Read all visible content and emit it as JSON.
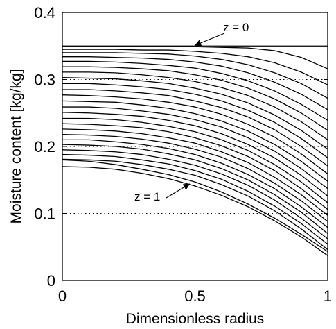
{
  "chart_data": {
    "type": "line",
    "title": "",
    "xlabel": "Dimensionless radius",
    "ylabel": "Moisture content [kg/kg]",
    "xlim": [
      0,
      1
    ],
    "ylim": [
      0,
      0.4
    ],
    "xticks": [
      {
        "value": 0,
        "label": "0"
      },
      {
        "value": 0.5,
        "label": "0.5"
      },
      {
        "value": 1,
        "label": "1"
      }
    ],
    "yticks": [
      {
        "value": 0,
        "label": "0"
      },
      {
        "value": 0.1,
        "label": "0.1"
      },
      {
        "value": 0.2,
        "label": "0.2"
      },
      {
        "value": 0.3,
        "label": "0.3"
      },
      {
        "value": 0.4,
        "label": "0.4"
      }
    ],
    "grid": {
      "style": "dotted",
      "x": [
        0.5
      ],
      "y": [
        0.1,
        0.2,
        0.3
      ]
    },
    "line_color": "#000000",
    "x": [
      0,
      0.1,
      0.2,
      0.3,
      0.4,
      0.5,
      0.6,
      0.7,
      0.8,
      0.9,
      1.0
    ],
    "series": [
      {
        "values": [
          0.35,
          0.35,
          0.35,
          0.35,
          0.35,
          0.35,
          0.35,
          0.35,
          0.35,
          0.35,
          0.35
        ]
      },
      {
        "values": [
          0.349,
          0.349,
          0.349,
          0.349,
          0.349,
          0.349,
          0.348,
          0.347,
          0.343,
          0.333,
          0.316
        ]
      },
      {
        "values": [
          0.345,
          0.345,
          0.345,
          0.344,
          0.344,
          0.342,
          0.339,
          0.334,
          0.325,
          0.311,
          0.292
        ]
      },
      {
        "values": [
          0.34,
          0.34,
          0.34,
          0.339,
          0.338,
          0.335,
          0.33,
          0.322,
          0.31,
          0.294,
          0.272
        ]
      },
      {
        "values": [
          0.334,
          0.334,
          0.333,
          0.332,
          0.33,
          0.326,
          0.32,
          0.31,
          0.296,
          0.278,
          0.255
        ]
      },
      {
        "values": [
          0.327,
          0.327,
          0.326,
          0.324,
          0.321,
          0.317,
          0.309,
          0.298,
          0.283,
          0.263,
          0.239
        ]
      },
      {
        "values": [
          0.319,
          0.319,
          0.318,
          0.316,
          0.313,
          0.307,
          0.299,
          0.287,
          0.271,
          0.25,
          0.224
        ]
      },
      {
        "values": [
          0.311,
          0.311,
          0.31,
          0.307,
          0.303,
          0.297,
          0.288,
          0.276,
          0.259,
          0.237,
          0.21
        ]
      },
      {
        "values": [
          0.303,
          0.302,
          0.301,
          0.298,
          0.294,
          0.287,
          0.278,
          0.265,
          0.247,
          0.224,
          0.196
        ]
      },
      {
        "values": [
          0.294,
          0.294,
          0.292,
          0.289,
          0.285,
          0.278,
          0.268,
          0.254,
          0.236,
          0.212,
          0.183
        ]
      },
      {
        "values": [
          0.285,
          0.285,
          0.283,
          0.28,
          0.276,
          0.268,
          0.258,
          0.244,
          0.225,
          0.2,
          0.171
        ]
      },
      {
        "values": [
          0.277,
          0.276,
          0.274,
          0.271,
          0.266,
          0.259,
          0.248,
          0.233,
          0.214,
          0.189,
          0.159
        ]
      },
      {
        "values": [
          0.268,
          0.267,
          0.266,
          0.262,
          0.257,
          0.249,
          0.238,
          0.223,
          0.203,
          0.178,
          0.148
        ]
      },
      {
        "values": [
          0.259,
          0.259,
          0.257,
          0.253,
          0.248,
          0.24,
          0.229,
          0.213,
          0.193,
          0.167,
          0.137
        ]
      },
      {
        "values": [
          0.251,
          0.25,
          0.248,
          0.245,
          0.239,
          0.231,
          0.219,
          0.203,
          0.183,
          0.157,
          0.126
        ]
      },
      {
        "values": [
          0.242,
          0.242,
          0.24,
          0.236,
          0.23,
          0.222,
          0.21,
          0.194,
          0.173,
          0.147,
          0.116
        ]
      },
      {
        "values": [
          0.234,
          0.233,
          0.231,
          0.228,
          0.222,
          0.213,
          0.201,
          0.185,
          0.164,
          0.137,
          0.106
        ]
      },
      {
        "values": [
          0.226,
          0.225,
          0.223,
          0.219,
          0.213,
          0.205,
          0.192,
          0.176,
          0.154,
          0.128,
          0.097
        ]
      },
      {
        "values": [
          0.218,
          0.217,
          0.215,
          0.211,
          0.205,
          0.196,
          0.184,
          0.167,
          0.145,
          0.119,
          0.088
        ]
      },
      {
        "values": [
          0.21,
          0.21,
          0.207,
          0.203,
          0.197,
          0.188,
          0.175,
          0.158,
          0.137,
          0.11,
          0.079
        ]
      },
      {
        "values": [
          0.203,
          0.202,
          0.2,
          0.196,
          0.189,
          0.18,
          0.167,
          0.15,
          0.128,
          0.102,
          0.07
        ]
      },
      {
        "values": [
          0.195,
          0.194,
          0.192,
          0.188,
          0.181,
          0.172,
          0.159,
          0.142,
          0.12,
          0.093,
          0.062
        ]
      },
      {
        "values": [
          0.188,
          0.187,
          0.185,
          0.18,
          0.174,
          0.164,
          0.151,
          0.133,
          0.111,
          0.085,
          0.054
        ]
      },
      {
        "values": [
          0.181,
          0.18,
          0.178,
          0.173,
          0.166,
          0.157,
          0.143,
          0.126,
          0.104,
          0.077,
          0.046
        ]
      },
      {
        "values": [
          0.18,
          0.178,
          0.173,
          0.166,
          0.158,
          0.147,
          0.132,
          0.114,
          0.093,
          0.069,
          0.043
        ]
      },
      {
        "values": [
          0.17,
          0.169,
          0.166,
          0.16,
          0.152,
          0.141,
          0.127,
          0.11,
          0.089,
          0.065,
          0.037
        ]
      }
    ],
    "annotations": [
      {
        "text": "z = 0",
        "points_to": {
          "x": 0.5,
          "y": 0.35
        }
      },
      {
        "text": "z = 1",
        "points_to": {
          "x": 0.5,
          "y": 0.147
        }
      }
    ]
  }
}
